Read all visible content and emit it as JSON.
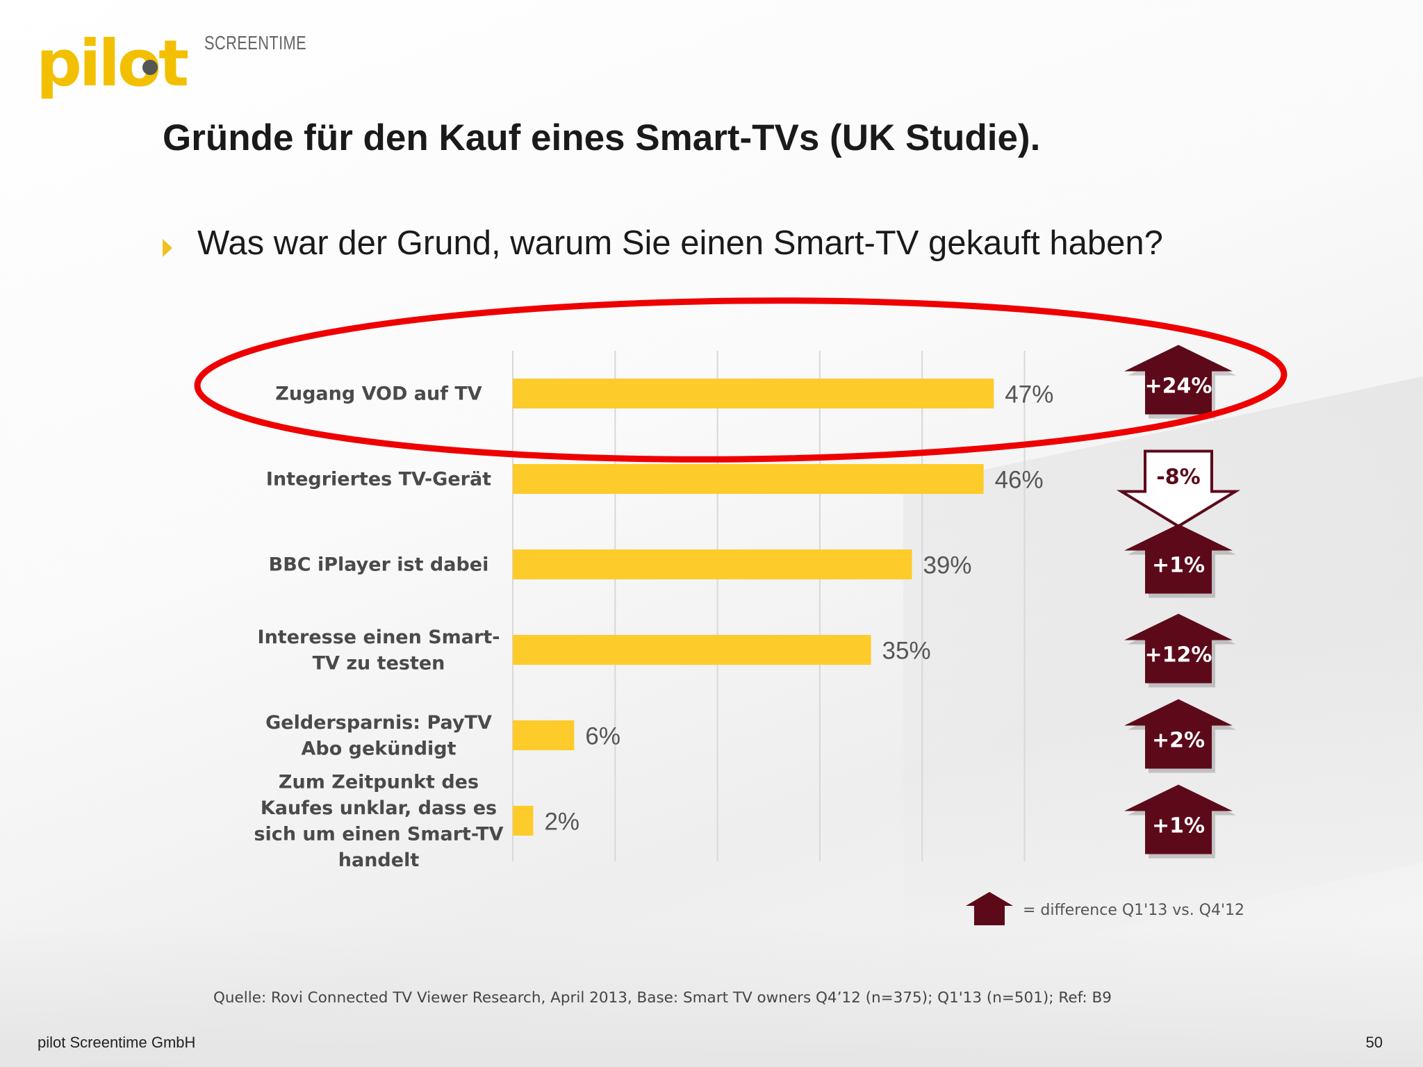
{
  "logo": {
    "word": "pilot",
    "sub": "SCREENTIME"
  },
  "slide": {
    "title": "Gründe für den Kauf eines Smart-TVs (UK Studie).",
    "question": "Was war der Grund, warum Sie einen Smart-TV gekauft haben?"
  },
  "chart_data": {
    "type": "bar",
    "orientation": "horizontal",
    "categories": [
      [
        "Zugang VOD auf TV"
      ],
      [
        "Integriertes TV-Gerät"
      ],
      [
        "BBC iPlayer ist dabei"
      ],
      [
        "Interesse einen Smart-",
        "TV zu testen"
      ],
      [
        "Geldersparnis: PayTV",
        "Abo gekündigt"
      ],
      [
        "Zum Zeitpunkt des",
        "Kaufes unklar, dass es",
        "sich um einen Smart-TV",
        "handelt"
      ]
    ],
    "values": [
      47,
      46,
      39,
      35,
      6,
      2
    ],
    "value_labels": [
      "47%",
      "46%",
      "39%",
      "35%",
      "6%",
      "2%"
    ],
    "xlim": [
      0,
      50
    ],
    "grid": true,
    "bar_color": "#fdcb2a",
    "differences": [
      {
        "label": "+24%",
        "direction": "up"
      },
      {
        "label": "-8%",
        "direction": "down"
      },
      {
        "label": "+1%",
        "direction": "up"
      },
      {
        "label": "+12%",
        "direction": "up"
      },
      {
        "label": "+2%",
        "direction": "up"
      },
      {
        "label": "+1%",
        "direction": "up"
      }
    ],
    "arrow_color": "#5c0a1a",
    "highlight_color": "#ee0000",
    "legend": "= difference Q1'13 vs. Q4'12"
  },
  "source": "Quelle: Rovi Connected TV Viewer Research, April 2013, Base: Smart TV owners Q4’12 (n=375); Q1'13 (n=501); Ref: B9",
  "footer": {
    "company": "pilot Screentime GmbH",
    "page": "50"
  }
}
